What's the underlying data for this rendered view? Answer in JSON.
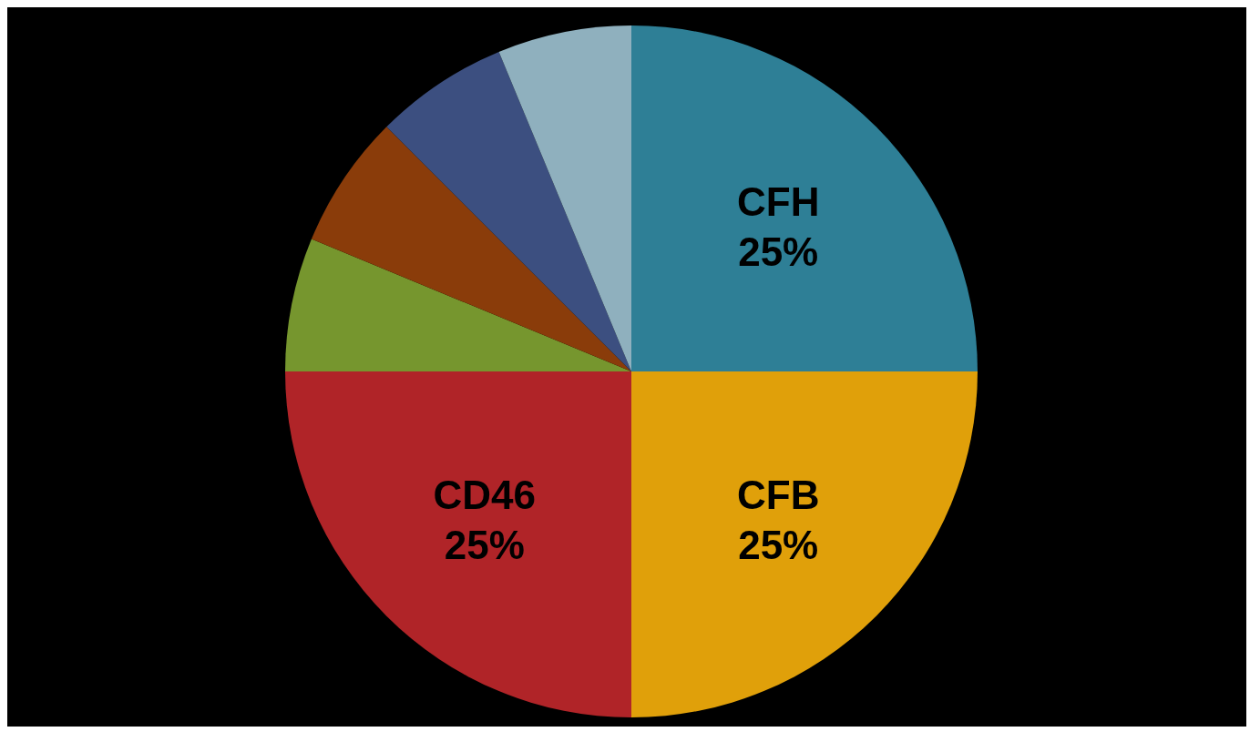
{
  "chart_data": {
    "type": "pie",
    "categories": [
      "CFH",
      "CFB",
      "CD46",
      null,
      null,
      null,
      null
    ],
    "values": [
      25,
      25,
      25,
      6.25,
      6.25,
      6.25,
      6.25
    ],
    "value_labels": [
      "25%",
      "25%",
      "25%",
      null,
      null,
      null,
      null
    ],
    "colors": [
      "#2e7f96",
      "#e0a00a",
      "#b02428",
      "#76962e",
      "#8a3c0a",
      "#3c4f80",
      "#8fb0be"
    ]
  }
}
